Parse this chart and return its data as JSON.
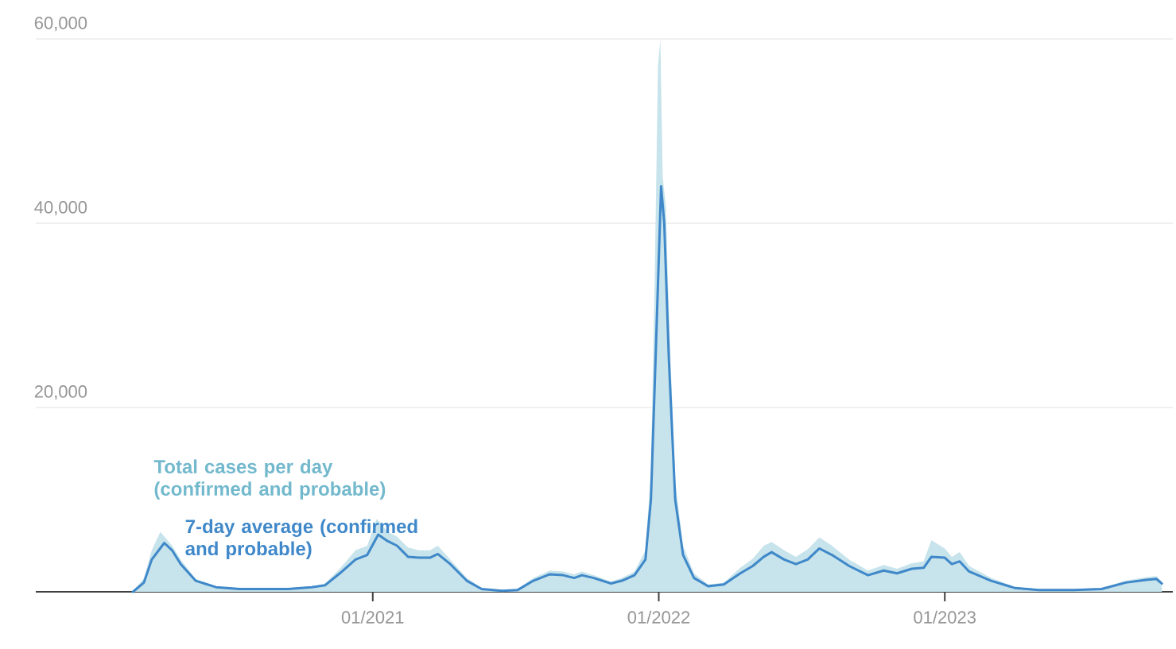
{
  "chart_data": {
    "type": "area",
    "xlim": [
      "2019-10-29",
      "2023-10-19"
    ],
    "xticks": [
      {
        "value": "2021-01-01",
        "label": "01/2021"
      },
      {
        "value": "2022-01-01",
        "label": "01/2022"
      },
      {
        "value": "2023-01-01",
        "label": "01/2023"
      }
    ],
    "ylim": [
      0,
      60000
    ],
    "yticks": [
      {
        "value": 20000,
        "label": "20,000"
      },
      {
        "value": 40000,
        "label": "40,000"
      },
      {
        "value": 60000,
        "label": "60,000"
      }
    ],
    "grid": "y",
    "legend": false,
    "series": [
      {
        "name": "Total cases per day (confirmed and probable)",
        "color": "#c7e3eb",
        "x": [
          "2020-03-01",
          "2020-03-15",
          "2020-03-25",
          "2020-04-05",
          "2020-04-20",
          "2020-05-01",
          "2020-05-20",
          "2020-06-15",
          "2020-07-15",
          "2020-08-15",
          "2020-09-15",
          "2020-10-15",
          "2020-11-01",
          "2020-11-20",
          "2020-12-10",
          "2020-12-25",
          "2021-01-06",
          "2021-01-20",
          "2021-02-01",
          "2021-02-15",
          "2021-03-01",
          "2021-03-15",
          "2021-03-25",
          "2021-04-10",
          "2021-05-01",
          "2021-05-20",
          "2021-06-15",
          "2021-07-05",
          "2021-07-25",
          "2021-08-15",
          "2021-09-01",
          "2021-09-15",
          "2021-09-25",
          "2021-10-10",
          "2021-11-01",
          "2021-11-15",
          "2021-12-01",
          "2021-12-15",
          "2021-12-22",
          "2021-12-27",
          "2021-12-31",
          "2022-01-03",
          "2022-01-06",
          "2022-01-10",
          "2022-01-14",
          "2022-01-22",
          "2022-02-01",
          "2022-02-15",
          "2022-03-05",
          "2022-03-25",
          "2022-04-15",
          "2022-05-01",
          "2022-05-15",
          "2022-05-25",
          "2022-06-10",
          "2022-06-25",
          "2022-07-10",
          "2022-07-25",
          "2022-08-10",
          "2022-09-01",
          "2022-09-25",
          "2022-10-15",
          "2022-11-01",
          "2022-11-20",
          "2022-12-05",
          "2022-12-15",
          "2023-01-01",
          "2023-01-10",
          "2023-01-20",
          "2023-02-01",
          "2023-03-01",
          "2023-04-01",
          "2023-05-01",
          "2023-06-15",
          "2023-07-20",
          "2023-08-20",
          "2023-09-15",
          "2023-09-28",
          "2023-10-05"
        ],
        "values": [
          0,
          1500,
          4500,
          6500,
          5000,
          3500,
          1400,
          600,
          400,
          400,
          400,
          600,
          900,
          2500,
          4500,
          5000,
          7900,
          6500,
          6000,
          4800,
          4500,
          4500,
          5000,
          3500,
          1500,
          400,
          200,
          300,
          1500,
          2300,
          2200,
          1900,
          2200,
          1800,
          1100,
          1500,
          2200,
          4500,
          13000,
          35000,
          57000,
          60000,
          45000,
          42000,
          30000,
          12000,
          5000,
          2000,
          800,
          1000,
          2600,
          3600,
          5000,
          5400,
          4500,
          3800,
          4600,
          5900,
          5000,
          3500,
          2300,
          2900,
          2500,
          3100,
          3300,
          5600,
          4700,
          3800,
          4300,
          2800,
          1500,
          500,
          300,
          300,
          400,
          1200,
          1600,
          1700,
          1100
        ]
      },
      {
        "name": "7-day average (confirmed and probable)",
        "type": "line",
        "color": "#3f88c9",
        "x": [
          "2020-03-01",
          "2020-03-15",
          "2020-03-25",
          "2020-04-10",
          "2020-04-20",
          "2020-05-01",
          "2020-05-20",
          "2020-06-15",
          "2020-07-15",
          "2020-08-15",
          "2020-09-15",
          "2020-10-15",
          "2020-11-01",
          "2020-11-20",
          "2020-12-10",
          "2020-12-25",
          "2021-01-08",
          "2021-01-20",
          "2021-02-01",
          "2021-02-15",
          "2021-03-01",
          "2021-03-15",
          "2021-03-25",
          "2021-04-10",
          "2021-05-01",
          "2021-05-20",
          "2021-06-15",
          "2021-07-05",
          "2021-07-25",
          "2021-08-15",
          "2021-09-01",
          "2021-09-15",
          "2021-09-25",
          "2021-10-10",
          "2021-11-01",
          "2021-11-15",
          "2021-12-01",
          "2021-12-15",
          "2021-12-22",
          "2021-12-28",
          "2022-01-04",
          "2022-01-08",
          "2022-01-14",
          "2022-01-22",
          "2022-02-01",
          "2022-02-15",
          "2022-03-05",
          "2022-03-25",
          "2022-04-15",
          "2022-05-01",
          "2022-05-15",
          "2022-05-25",
          "2022-06-10",
          "2022-06-25",
          "2022-07-10",
          "2022-07-25",
          "2022-08-10",
          "2022-09-01",
          "2022-09-25",
          "2022-10-15",
          "2022-11-01",
          "2022-11-20",
          "2022-12-05",
          "2022-12-15",
          "2023-01-01",
          "2023-01-10",
          "2023-01-20",
          "2023-02-01",
          "2023-03-01",
          "2023-04-01",
          "2023-05-01",
          "2023-06-15",
          "2023-07-20",
          "2023-08-20",
          "2023-09-15",
          "2023-09-28",
          "2023-10-05"
        ],
        "values": [
          0,
          1000,
          3500,
          5300,
          4500,
          3000,
          1200,
          500,
          300,
          300,
          300,
          500,
          700,
          2000,
          3500,
          4000,
          6200,
          5500,
          5000,
          3800,
          3700,
          3700,
          4100,
          3000,
          1200,
          300,
          100,
          200,
          1200,
          1900,
          1800,
          1500,
          1800,
          1500,
          900,
          1200,
          1800,
          3500,
          10000,
          25500,
          44000,
          40000,
          25000,
          10000,
          4000,
          1500,
          600,
          800,
          2000,
          2800,
          3800,
          4300,
          3500,
          3000,
          3500,
          4700,
          4000,
          2800,
          1800,
          2300,
          2000,
          2500,
          2600,
          3800,
          3700,
          3000,
          3300,
          2200,
          1200,
          400,
          200,
          200,
          300,
          1000,
          1300,
          1400,
          900
        ]
      }
    ]
  }
}
